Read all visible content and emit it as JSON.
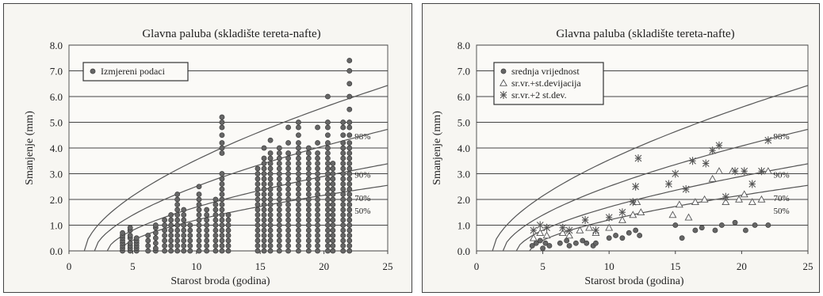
{
  "chart_data": [
    {
      "type": "scatter",
      "title": "Glavna paluba (skladište tereta-nafte)",
      "xlabel": "Starost broda (godina)",
      "ylabel": "Smanjenje (mm)",
      "xlim": [
        0,
        25
      ],
      "ylim": [
        0,
        8
      ],
      "xticks": [
        "0",
        "5",
        "10",
        "15",
        "20",
        "25"
      ],
      "yticks": [
        "0.0",
        "1.0",
        "2.0",
        "3.0",
        "4.0",
        "5.0",
        "6.0",
        "7.0",
        "8.0"
      ],
      "grid": "horizontal",
      "legend_position": "top-left",
      "series": [
        {
          "name": "Izmjereni podaci",
          "marker": "circle",
          "columns": [
            {
              "x": 4.2,
              "y": [
                0.0,
                0.1,
                0.2,
                0.3,
                0.4,
                0.5,
                0.6,
                0.7
              ]
            },
            {
              "x": 4.8,
              "y": [
                0.0,
                0.1,
                0.2,
                0.3,
                0.5,
                0.6,
                0.8,
                0.9
              ]
            },
            {
              "x": 5.3,
              "y": [
                0.0,
                0.1,
                0.2,
                0.3,
                0.4,
                0.5
              ]
            },
            {
              "x": 6.2,
              "y": [
                0.0,
                0.2,
                0.4,
                0.6
              ]
            },
            {
              "x": 6.8,
              "y": [
                0.0,
                0.1,
                0.3,
                0.5,
                0.7,
                0.9,
                1.0
              ]
            },
            {
              "x": 7.5,
              "y": [
                0.0,
                0.2,
                0.4,
                0.6,
                0.8,
                1.0,
                1.2
              ]
            },
            {
              "x": 8.0,
              "y": [
                0.0,
                0.2,
                0.4,
                0.6,
                0.8,
                1.0,
                1.2,
                1.4
              ]
            },
            {
              "x": 8.5,
              "y": [
                0.0,
                0.2,
                0.4,
                0.6,
                0.8,
                1.0,
                1.2,
                1.4,
                1.6,
                1.8,
                2.0,
                2.2
              ]
            },
            {
              "x": 9.0,
              "y": [
                0.0,
                0.2,
                0.4,
                0.6,
                0.8,
                1.0,
                1.2,
                1.4,
                1.6
              ]
            },
            {
              "x": 9.5,
              "y": [
                0.0,
                0.2,
                0.4,
                0.6,
                0.8,
                1.0
              ]
            },
            {
              "x": 10.2,
              "y": [
                0.0,
                0.2,
                0.4,
                0.6,
                0.8,
                1.0,
                1.2,
                1.4,
                1.6,
                1.8,
                2.0,
                2.2,
                2.5
              ]
            },
            {
              "x": 10.8,
              "y": [
                0.0,
                0.2,
                0.4,
                0.6,
                0.8,
                1.0,
                1.2,
                1.4,
                1.6
              ]
            },
            {
              "x": 11.5,
              "y": [
                0.0,
                0.2,
                0.4,
                0.6,
                0.8,
                1.0,
                1.2,
                1.4,
                1.6,
                1.8,
                2.0
              ]
            },
            {
              "x": 12.0,
              "y": [
                0.0,
                0.2,
                0.4,
                0.6,
                0.8,
                1.0,
                1.2,
                1.4,
                1.6,
                1.8,
                2.0,
                2.2,
                2.4,
                2.6,
                2.8,
                3.0,
                3.8,
                4.0,
                4.2,
                4.5,
                4.8,
                5.0,
                5.2
              ]
            },
            {
              "x": 12.5,
              "y": [
                0.0,
                0.2,
                0.4,
                0.6,
                0.8,
                1.0,
                1.2,
                1.4
              ]
            },
            {
              "x": 14.8,
              "y": [
                0.0,
                0.2,
                0.4,
                0.6,
                0.8,
                1.0,
                1.2,
                1.4,
                1.6,
                1.8,
                2.0,
                2.2,
                2.4,
                2.6,
                2.8,
                3.0,
                3.2
              ]
            },
            {
              "x": 15.3,
              "y": [
                0.0,
                0.2,
                0.4,
                0.6,
                0.8,
                1.0,
                1.2,
                1.4,
                1.6,
                1.8,
                2.0,
                2.2,
                2.4,
                2.6,
                2.8,
                3.0,
                3.2,
                3.4,
                3.6,
                4.0
              ]
            },
            {
              "x": 15.8,
              "y": [
                0.0,
                0.2,
                0.4,
                0.6,
                0.8,
                1.0,
                1.2,
                1.4,
                1.6,
                1.8,
                2.0,
                2.2,
                2.4,
                2.6,
                2.8,
                3.0,
                3.2,
                3.4,
                3.6,
                3.8,
                4.3
              ]
            },
            {
              "x": 16.5,
              "y": [
                0.0,
                0.2,
                0.4,
                0.6,
                0.8,
                1.0,
                1.2,
                1.4,
                1.6,
                1.8,
                2.0,
                2.2,
                2.4,
                2.6,
                2.8,
                3.0,
                3.2,
                3.4,
                3.6,
                3.8,
                4.0
              ]
            },
            {
              "x": 17.2,
              "y": [
                0.0,
                0.2,
                0.4,
                0.6,
                0.8,
                1.0,
                1.2,
                1.4,
                1.6,
                1.8,
                2.0,
                2.2,
                2.4,
                2.6,
                2.8,
                3.0,
                3.2,
                3.4,
                3.6,
                3.8,
                4.2,
                4.8
              ]
            },
            {
              "x": 18.0,
              "y": [
                0.0,
                0.2,
                0.4,
                0.6,
                0.8,
                1.0,
                1.2,
                1.4,
                1.6,
                1.8,
                2.0,
                2.2,
                2.4,
                2.6,
                2.8,
                3.0,
                3.2,
                3.4,
                3.6,
                3.8,
                4.0,
                4.2,
                4.5,
                4.8,
                5.0
              ]
            },
            {
              "x": 18.8,
              "y": [
                0.0,
                0.2,
                0.4,
                0.6,
                0.8,
                1.0,
                1.2,
                1.4,
                1.6,
                1.8,
                2.0,
                2.2,
                2.4,
                2.6,
                2.8,
                3.0,
                3.2,
                3.4,
                3.6,
                3.8,
                4.0
              ]
            },
            {
              "x": 19.5,
              "y": [
                0.0,
                0.2,
                0.4,
                0.6,
                0.8,
                1.0,
                1.2,
                1.4,
                1.6,
                1.8,
                2.0,
                2.2,
                2.4,
                2.6,
                2.8,
                3.0,
                3.2,
                3.4,
                3.6,
                3.8,
                4.2,
                4.8
              ]
            },
            {
              "x": 20.3,
              "y": [
                0.0,
                0.2,
                0.4,
                0.6,
                0.8,
                1.0,
                1.2,
                1.4,
                1.6,
                1.8,
                2.0,
                2.2,
                2.4,
                2.6,
                2.8,
                3.0,
                3.2,
                3.4,
                3.6,
                3.8,
                4.0,
                4.2,
                4.5,
                4.8,
                5.0,
                6.0
              ]
            },
            {
              "x": 20.7,
              "y": [
                0.0,
                0.2,
                0.4,
                0.6,
                0.8,
                1.0,
                1.2,
                1.4,
                1.6,
                1.8,
                2.0,
                2.2,
                2.4,
                2.6,
                2.8,
                3.0,
                3.2,
                3.4
              ]
            },
            {
              "x": 21.5,
              "y": [
                0.0,
                0.2,
                0.4,
                0.6,
                0.8,
                1.0,
                1.2,
                1.4,
                1.6,
                1.8,
                2.0,
                2.2,
                2.4,
                2.6,
                2.8,
                3.0,
                3.2,
                3.4,
                3.6,
                3.8,
                4.0,
                4.2,
                4.5,
                4.8,
                5.0
              ]
            },
            {
              "x": 22.0,
              "y": [
                0.0,
                0.2,
                0.4,
                0.6,
                0.8,
                1.0,
                1.2,
                1.4,
                1.6,
                1.8,
                2.0,
                2.2,
                2.4,
                2.6,
                2.8,
                3.0,
                3.2,
                3.4,
                3.6,
                3.8,
                4.0,
                4.2,
                4.5,
                4.8,
                5.0,
                5.5,
                6.0,
                6.5,
                7.0,
                7.4
              ]
            }
          ]
        }
      ],
      "curves": [
        {
          "label": "98%",
          "t0": 1.2,
          "scale": 0.96,
          "end_y": 4.5
        },
        {
          "label": "90%",
          "t0": 2.0,
          "scale": 0.72,
          "end_y": 3.0
        },
        {
          "label": "70%",
          "t0": 3.0,
          "scale": 0.53,
          "end_y": 2.1
        },
        {
          "label": "50%",
          "t0": 4.0,
          "scale": 0.41,
          "end_y": 1.6
        }
      ]
    },
    {
      "type": "scatter",
      "title": "Glavna paluba (skladište tereta-nafte)",
      "xlabel": "Starost broda (godina)",
      "ylabel": "Smanjenje (mm)",
      "xlim": [
        0,
        25
      ],
      "ylim": [
        0,
        8
      ],
      "xticks": [
        "0",
        "5",
        "10",
        "15",
        "20",
        "25"
      ],
      "yticks": [
        "0.0",
        "1.0",
        "2.0",
        "3.0",
        "4.0",
        "5.0",
        "6.0",
        "7.0",
        "8.0"
      ],
      "grid": "horizontal",
      "legend_position": "top-left",
      "series": [
        {
          "name": "srednja vrijednost",
          "marker": "circle",
          "points": [
            [
              4.2,
              0.2
            ],
            [
              4.5,
              0.3
            ],
            [
              4.8,
              0.4
            ],
            [
              5.0,
              0.1
            ],
            [
              5.2,
              0.3
            ],
            [
              5.5,
              0.2
            ],
            [
              6.3,
              0.3
            ],
            [
              6.8,
              0.4
            ],
            [
              7.0,
              0.2
            ],
            [
              7.5,
              0.3
            ],
            [
              8.0,
              0.4
            ],
            [
              8.3,
              0.3
            ],
            [
              8.8,
              0.2
            ],
            [
              9.0,
              0.3
            ],
            [
              10.0,
              0.5
            ],
            [
              10.5,
              0.6
            ],
            [
              11.0,
              0.5
            ],
            [
              11.5,
              0.7
            ],
            [
              12.0,
              0.8
            ],
            [
              12.3,
              0.6
            ],
            [
              15.0,
              1.0
            ],
            [
              15.5,
              0.5
            ],
            [
              16.5,
              0.8
            ],
            [
              17.0,
              0.9
            ],
            [
              18.0,
              0.8
            ],
            [
              18.5,
              1.0
            ],
            [
              19.5,
              1.1
            ],
            [
              20.3,
              0.8
            ],
            [
              21.0,
              1.0
            ],
            [
              22.0,
              1.0
            ]
          ]
        },
        {
          "name": "sr.vr.+st.devijacija",
          "marker": "triangle",
          "points": [
            [
              4.3,
              0.5
            ],
            [
              4.8,
              0.7
            ],
            [
              5.3,
              0.6
            ],
            [
              6.5,
              0.7
            ],
            [
              7.0,
              0.6
            ],
            [
              7.8,
              0.8
            ],
            [
              8.5,
              0.9
            ],
            [
              9.0,
              0.7
            ],
            [
              10.0,
              0.9
            ],
            [
              11.0,
              1.2
            ],
            [
              11.8,
              1.4
            ],
            [
              12.1,
              1.9
            ],
            [
              12.4,
              1.5
            ],
            [
              14.8,
              1.4
            ],
            [
              15.3,
              1.8
            ],
            [
              16.0,
              1.3
            ],
            [
              16.5,
              1.9
            ],
            [
              17.2,
              2.0
            ],
            [
              17.8,
              2.8
            ],
            [
              18.3,
              3.1
            ],
            [
              18.8,
              1.9
            ],
            [
              19.3,
              3.1
            ],
            [
              19.8,
              2.0
            ],
            [
              20.2,
              2.2
            ],
            [
              20.8,
              1.9
            ],
            [
              21.5,
              2.0
            ],
            [
              22.0,
              3.1
            ]
          ]
        },
        {
          "name": "sr.vr.+2 st.dev.",
          "marker": "asterisk",
          "points": [
            [
              4.3,
              0.8
            ],
            [
              4.8,
              1.0
            ],
            [
              5.3,
              0.9
            ],
            [
              6.5,
              0.9
            ],
            [
              7.0,
              0.8
            ],
            [
              8.2,
              1.2
            ],
            [
              9.0,
              0.8
            ],
            [
              10.0,
              1.3
            ],
            [
              11.0,
              1.5
            ],
            [
              11.8,
              1.9
            ],
            [
              12.0,
              2.5
            ],
            [
              12.2,
              3.6
            ],
            [
              14.5,
              2.6
            ],
            [
              15.0,
              3.0
            ],
            [
              15.8,
              2.4
            ],
            [
              16.3,
              3.5
            ],
            [
              17.3,
              3.4
            ],
            [
              17.8,
              3.9
            ],
            [
              18.3,
              4.1
            ],
            [
              18.8,
              2.1
            ],
            [
              19.5,
              3.1
            ],
            [
              20.2,
              3.1
            ],
            [
              20.8,
              2.6
            ],
            [
              21.5,
              3.1
            ],
            [
              22.0,
              4.3
            ]
          ]
        }
      ],
      "curves": [
        {
          "label": "98%",
          "t0": 1.2,
          "scale": 0.96,
          "end_y": 4.5
        },
        {
          "label": "90%",
          "t0": 2.0,
          "scale": 0.72,
          "end_y": 3.0
        },
        {
          "label": "70%",
          "t0": 3.0,
          "scale": 0.53,
          "end_y": 2.1
        },
        {
          "label": "50%",
          "t0": 4.0,
          "scale": 0.41,
          "end_y": 1.6
        }
      ]
    }
  ]
}
